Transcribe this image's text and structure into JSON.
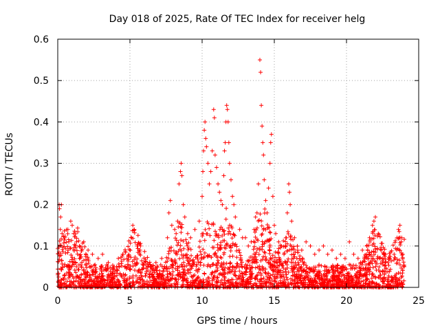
{
  "chart_data": {
    "type": "scatter",
    "title": "Day 018 of 2025, Rate Of TEC Index for receiver helg",
    "xlabel": "GPS time / hours",
    "ylabel": "ROTI / TECUs",
    "xlim": [
      0,
      25
    ],
    "ylim": [
      0,
      0.6
    ],
    "xticks": [
      0,
      5,
      10,
      15,
      20,
      25
    ],
    "xtick_labels": [
      "0",
      "5",
      "10",
      "15",
      "20",
      "25"
    ],
    "yticks": [
      0,
      0.1,
      0.2,
      0.3,
      0.4,
      0.5,
      0.6
    ],
    "ytick_labels": [
      "0",
      "0.1",
      "0.2",
      "0.3",
      "0.4",
      "0.5",
      "0.6"
    ],
    "grid": true,
    "marker": "+",
    "marker_color": "#ff0000",
    "series": [
      {
        "name": "ROTI",
        "points": [
          [
            0.1,
            0.2
          ],
          [
            0.12,
            0.19
          ],
          [
            0.2,
            0.17
          ],
          [
            0.25,
            0.2
          ],
          [
            0.18,
            0.14
          ],
          [
            0.3,
            0.13
          ],
          [
            0.5,
            0.12
          ],
          [
            0.7,
            0.14
          ],
          [
            0.9,
            0.16
          ],
          [
            1.0,
            0.15
          ],
          [
            1.1,
            0.13
          ],
          [
            1.3,
            0.11
          ],
          [
            1.5,
            0.1
          ],
          [
            1.8,
            0.11
          ],
          [
            2.1,
            0.09
          ],
          [
            2.4,
            0.08
          ],
          [
            2.8,
            0.07
          ],
          [
            3.1,
            0.08
          ],
          [
            3.5,
            0.06
          ],
          [
            3.9,
            0.05
          ],
          [
            4.2,
            0.07
          ],
          [
            4.5,
            0.08
          ],
          [
            4.8,
            0.07
          ],
          [
            5.1,
            0.12
          ],
          [
            5.2,
            0.15
          ],
          [
            5.3,
            0.14
          ],
          [
            5.5,
            0.1
          ],
          [
            5.7,
            0.09
          ],
          [
            6.0,
            0.06
          ],
          [
            6.4,
            0.05
          ],
          [
            6.8,
            0.06
          ],
          [
            7.2,
            0.07
          ],
          [
            7.6,
            0.12
          ],
          [
            7.7,
            0.18
          ],
          [
            7.8,
            0.21
          ],
          [
            7.9,
            0.15
          ],
          [
            8.1,
            0.14
          ],
          [
            8.2,
            0.13
          ],
          [
            8.3,
            0.16
          ],
          [
            8.4,
            0.25
          ],
          [
            8.5,
            0.28
          ],
          [
            8.55,
            0.3
          ],
          [
            8.6,
            0.27
          ],
          [
            8.7,
            0.2
          ],
          [
            8.8,
            0.17
          ],
          [
            9.0,
            0.13
          ],
          [
            9.2,
            0.12
          ],
          [
            9.5,
            0.14
          ],
          [
            9.8,
            0.16
          ],
          [
            10.0,
            0.22
          ],
          [
            10.05,
            0.28
          ],
          [
            10.1,
            0.33
          ],
          [
            10.15,
            0.38
          ],
          [
            10.2,
            0.4
          ],
          [
            10.25,
            0.36
          ],
          [
            10.3,
            0.34
          ],
          [
            10.4,
            0.3
          ],
          [
            10.5,
            0.25
          ],
          [
            10.6,
            0.28
          ],
          [
            10.7,
            0.33
          ],
          [
            10.8,
            0.43
          ],
          [
            10.85,
            0.41
          ],
          [
            10.9,
            0.32
          ],
          [
            11.0,
            0.29
          ],
          [
            11.1,
            0.25
          ],
          [
            11.2,
            0.23
          ],
          [
            11.3,
            0.21
          ],
          [
            11.4,
            0.2
          ],
          [
            11.5,
            0.27
          ],
          [
            11.55,
            0.33
          ],
          [
            11.6,
            0.35
          ],
          [
            11.65,
            0.4
          ],
          [
            11.7,
            0.44
          ],
          [
            11.75,
            0.43
          ],
          [
            11.8,
            0.4
          ],
          [
            11.85,
            0.35
          ],
          [
            11.9,
            0.3
          ],
          [
            12.0,
            0.26
          ],
          [
            12.1,
            0.22
          ],
          [
            12.2,
            0.2
          ],
          [
            12.3,
            0.17
          ],
          [
            12.6,
            0.14
          ],
          [
            12.8,
            0.12
          ],
          [
            13.0,
            0.12
          ],
          [
            13.2,
            0.1
          ],
          [
            13.4,
            0.11
          ],
          [
            13.6,
            0.14
          ],
          [
            13.7,
            0.17
          ],
          [
            13.8,
            0.18
          ],
          [
            13.9,
            0.25
          ],
          [
            14.0,
            0.55
          ],
          [
            14.05,
            0.52
          ],
          [
            14.1,
            0.44
          ],
          [
            14.15,
            0.39
          ],
          [
            14.2,
            0.35
          ],
          [
            14.25,
            0.32
          ],
          [
            14.3,
            0.26
          ],
          [
            14.4,
            0.21
          ],
          [
            14.5,
            0.18
          ],
          [
            14.6,
            0.24
          ],
          [
            14.7,
            0.3
          ],
          [
            14.75,
            0.35
          ],
          [
            14.8,
            0.37
          ],
          [
            14.9,
            0.22
          ],
          [
            15.0,
            0.15
          ],
          [
            15.1,
            0.13
          ],
          [
            15.3,
            0.11
          ],
          [
            15.5,
            0.1
          ],
          [
            15.8,
            0.12
          ],
          [
            15.9,
            0.18
          ],
          [
            16.0,
            0.25
          ],
          [
            16.05,
            0.23
          ],
          [
            16.1,
            0.2
          ],
          [
            16.2,
            0.16
          ],
          [
            16.4,
            0.12
          ],
          [
            16.6,
            0.1
          ],
          [
            16.9,
            0.09
          ],
          [
            17.2,
            0.11
          ],
          [
            17.5,
            0.1
          ],
          [
            17.8,
            0.08
          ],
          [
            18.1,
            0.09
          ],
          [
            18.4,
            0.1
          ],
          [
            18.7,
            0.08
          ],
          [
            19.0,
            0.09
          ],
          [
            19.3,
            0.07
          ],
          [
            19.6,
            0.08
          ],
          [
            19.9,
            0.07
          ],
          [
            20.2,
            0.11
          ],
          [
            20.5,
            0.08
          ],
          [
            20.8,
            0.07
          ],
          [
            21.1,
            0.09
          ],
          [
            21.4,
            0.1
          ],
          [
            21.6,
            0.12
          ],
          [
            21.8,
            0.15
          ],
          [
            21.9,
            0.16
          ],
          [
            22.0,
            0.17
          ],
          [
            22.2,
            0.13
          ],
          [
            22.4,
            0.09
          ],
          [
            22.7,
            0.08
          ],
          [
            23.0,
            0.07
          ],
          [
            23.3,
            0.08
          ],
          [
            23.5,
            0.12
          ],
          [
            23.6,
            0.14
          ],
          [
            23.7,
            0.15
          ],
          [
            23.8,
            0.11
          ],
          [
            23.9,
            0.08
          ],
          [
            24.0,
            0.05
          ]
        ]
      }
    ]
  }
}
